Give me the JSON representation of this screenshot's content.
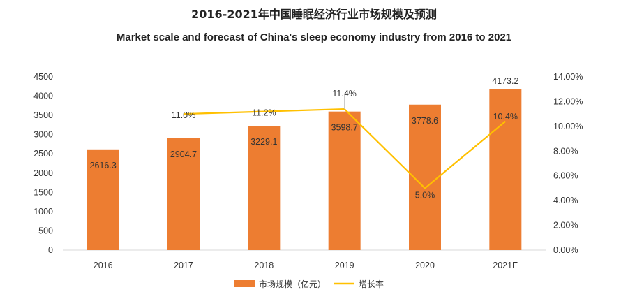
{
  "title_cn": "2016-2021年中国睡眠经济行业市场规模及预测",
  "title_en": "Market scale and forecast of China's sleep economy industry from 2016 to 2021",
  "colors": {
    "bar": "#ED7D31",
    "line": "#FFC000",
    "axis": "#D9D9D9"
  },
  "chart_data": {
    "type": "bar",
    "categories": [
      "2016",
      "2017",
      "2018",
      "2019",
      "2020",
      "2021E"
    ],
    "series": [
      {
        "name": "市场规模（亿元）",
        "type": "bar",
        "axis": "left",
        "values": [
          2616.3,
          2904.7,
          3229.1,
          3598.7,
          3778.6,
          4173.2
        ],
        "labels": [
          "2616.3",
          "2904.7",
          "3229.1",
          "3598.7",
          "3778.6",
          "4173.2"
        ]
      },
      {
        "name": "增长率",
        "type": "line",
        "axis": "right",
        "values": [
          null,
          11.0,
          11.2,
          11.4,
          5.0,
          10.4
        ],
        "labels": [
          "",
          "11.0%",
          "11.2%",
          "11.4%",
          "5.0%",
          "10.4%"
        ]
      }
    ],
    "y_left": {
      "min": 0,
      "max": 4500,
      "step": 500,
      "ticks": [
        "0",
        "500",
        "1000",
        "1500",
        "2000",
        "2500",
        "3000",
        "3500",
        "4000",
        "4500"
      ]
    },
    "y_right": {
      "min": 0,
      "max": 14,
      "step": 2,
      "ticks": [
        "0.00%",
        "2.00%",
        "4.00%",
        "6.00%",
        "8.00%",
        "10.00%",
        "12.00%",
        "14.00%"
      ]
    },
    "legend": {
      "position": "bottom"
    },
    "grid": false
  }
}
